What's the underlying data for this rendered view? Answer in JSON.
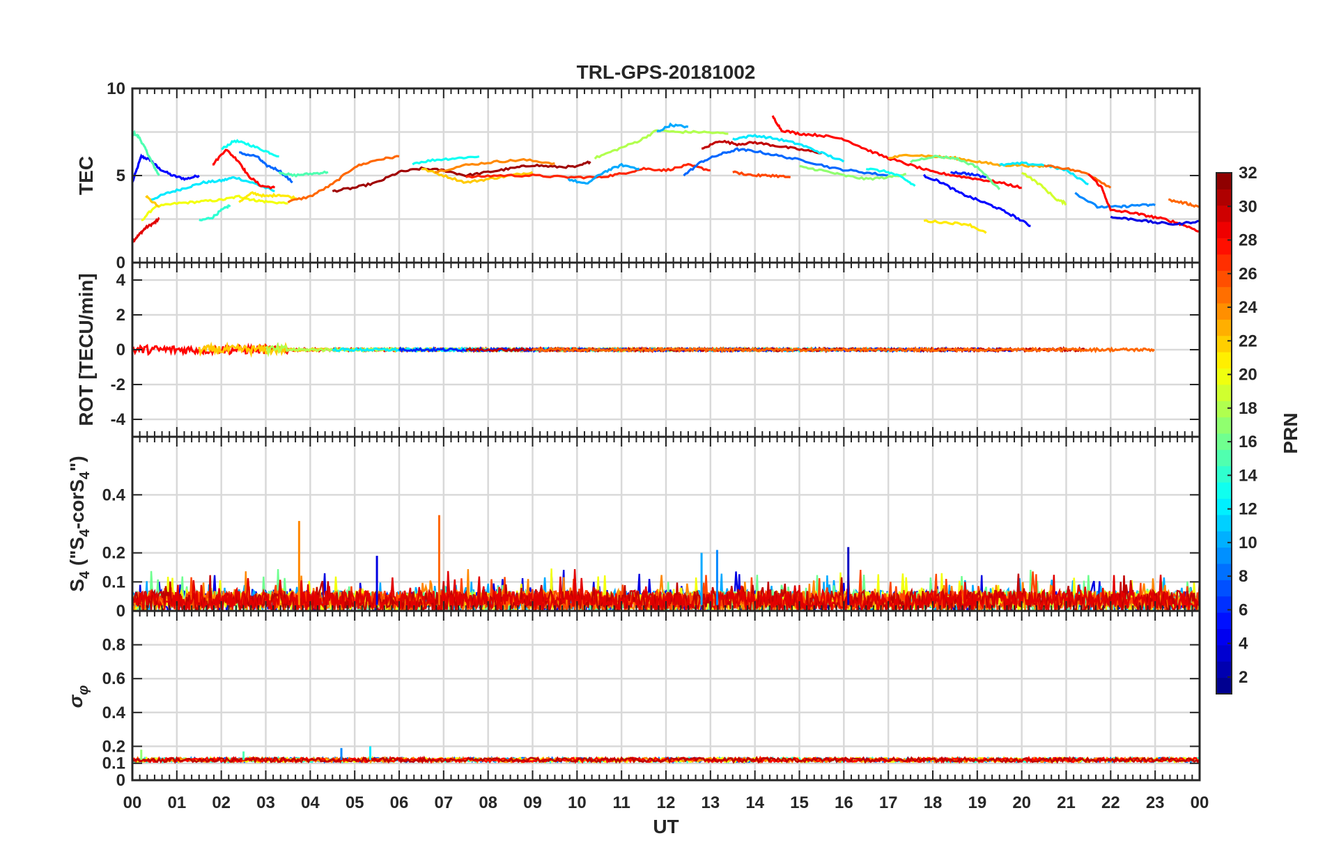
{
  "title": "TRL-GPS-20181002",
  "x_axis": {
    "label": "UT",
    "ticks": [
      "00",
      "01",
      "02",
      "03",
      "04",
      "05",
      "06",
      "07",
      "08",
      "09",
      "10",
      "11",
      "12",
      "13",
      "14",
      "15",
      "16",
      "17",
      "18",
      "19",
      "20",
      "21",
      "22",
      "23",
      "00"
    ]
  },
  "colorbar": {
    "label": "PRN",
    "ticks": [
      "2",
      "4",
      "6",
      "8",
      "10",
      "12",
      "14",
      "16",
      "18",
      "20",
      "22",
      "24",
      "26",
      "28",
      "30",
      "32"
    ],
    "colormap": "jet",
    "range": [
      1,
      32
    ]
  },
  "panels": {
    "tec": {
      "ylabel": "TEC",
      "ticks": [
        "0",
        "5",
        "10"
      ]
    },
    "rot": {
      "ylabel": "ROT [TECU/min]",
      "ticks": [
        "-4",
        "-2",
        "0",
        "2",
        "4"
      ]
    },
    "s4": {
      "ylabel_main": "S",
      "ylabel_sub1": "4",
      "ylabel_mid": " (\"S",
      "ylabel_sub2": "4",
      "ylabel_mid2": "-corS",
      "ylabel_sub3": "4",
      "ylabel_end": "\")",
      "ticks": [
        "0",
        "0.1",
        "0.2",
        "0.4"
      ]
    },
    "sigma": {
      "ylabel_main": "σ",
      "ylabel_sub": "φ",
      "ticks": [
        "0",
        "0.1",
        "0.2",
        "0.4",
        "0.6",
        "0.8"
      ]
    }
  },
  "chart_data": [
    {
      "type": "line",
      "title": "TRL-GPS-20181002",
      "ylabel": "TEC",
      "xlabel": "",
      "xlim": [
        0,
        24
      ],
      "ylim": [
        0,
        10
      ],
      "grid": true,
      "series": [
        {
          "color_prn": 5,
          "x": [
            0,
            0.2,
            0.4,
            0.6,
            0.9,
            1.2,
            1.5
          ],
          "y": [
            4.6,
            6.1,
            5.9,
            5.4,
            5.0,
            4.8,
            5.0
          ]
        },
        {
          "color_prn": 29,
          "x": [
            0,
            0.15,
            0.3,
            0.5,
            0.6
          ],
          "y": [
            1.2,
            1.6,
            2.0,
            2.3,
            2.5
          ]
        },
        {
          "color_prn": 15,
          "x": [
            0,
            0.15,
            0.3,
            0.45,
            0.6
          ],
          "y": [
            7.5,
            7.2,
            6.5,
            5.7,
            5.0
          ]
        },
        {
          "color_prn": 12,
          "x": [
            0.4,
            0.8,
            1.2,
            1.6,
            2.0,
            2.3,
            2.8,
            3.2
          ],
          "y": [
            3.6,
            4.0,
            4.3,
            4.6,
            4.7,
            4.9,
            4.5,
            4.1
          ]
        },
        {
          "color_prn": 20,
          "x": [
            0.2,
            0.5,
            1.0,
            1.5,
            2.0,
            2.4,
            2.7,
            3.0,
            3.5
          ],
          "y": [
            2.4,
            3.2,
            3.4,
            3.5,
            3.6,
            3.8,
            3.6,
            3.5,
            3.4
          ]
        },
        {
          "color_prn": 22,
          "x": [
            0.3,
            0.6
          ],
          "y": [
            3.8,
            3.2
          ]
        },
        {
          "color_prn": 14,
          "x": [
            1.5,
            1.8,
            2.0,
            2.2
          ],
          "y": [
            2.4,
            2.6,
            3.0,
            3.3
          ]
        },
        {
          "color_prn": 13,
          "x": [
            2.0,
            2.3,
            2.6,
            3.0,
            3.3
          ],
          "y": [
            6.5,
            7.0,
            6.8,
            6.4,
            6.1
          ]
        },
        {
          "color_prn": 28,
          "x": [
            1.8,
            2.1,
            2.4,
            2.6,
            2.9,
            3.2
          ],
          "y": [
            5.6,
            6.5,
            5.8,
            5.0,
            4.4,
            4.3
          ]
        },
        {
          "color_prn": 8,
          "x": [
            2.4,
            2.8,
            3.0,
            3.3,
            3.6
          ],
          "y": [
            6.3,
            6.1,
            5.6,
            5.3,
            4.6
          ]
        },
        {
          "color_prn": 21,
          "x": [
            2.4,
            2.7,
            3.0,
            3.3,
            3.7
          ],
          "y": [
            3.5,
            4.0,
            3.8,
            3.9,
            3.7
          ]
        },
        {
          "color_prn": 15,
          "x": [
            3.3,
            3.6,
            4.0,
            4.4
          ],
          "y": [
            5.2,
            5.0,
            5.1,
            5.2
          ]
        },
        {
          "color_prn": 25,
          "x": [
            3.5,
            4.0,
            4.5,
            5.0,
            5.5,
            6.0
          ],
          "y": [
            3.5,
            3.8,
            4.5,
            5.5,
            5.9,
            6.1
          ]
        },
        {
          "color_prn": 31,
          "x": [
            4.5,
            5.0,
            5.5,
            6.0,
            6.5,
            7.0,
            7.5,
            8.0,
            8.5,
            9.0,
            9.5,
            10.0,
            10.3
          ],
          "y": [
            4.1,
            4.3,
            4.6,
            5.2,
            5.4,
            5.3,
            5.0,
            5.2,
            5.4,
            5.6,
            5.5,
            5.5,
            5.8
          ]
        },
        {
          "color_prn": 13,
          "x": [
            6.3,
            6.8,
            7.3,
            7.8
          ],
          "y": [
            5.7,
            5.9,
            6.0,
            6.1
          ]
        },
        {
          "color_prn": 22,
          "x": [
            6.5,
            7.0,
            7.5,
            8.0,
            8.5,
            9.0
          ],
          "y": [
            5.4,
            5.0,
            4.6,
            4.8,
            5.0,
            5.2
          ]
        },
        {
          "color_prn": 24,
          "x": [
            6.8,
            7.5,
            8.2,
            8.8,
            9.5
          ],
          "y": [
            5.2,
            5.6,
            5.8,
            5.9,
            5.7
          ]
        },
        {
          "color_prn": 27,
          "x": [
            7.5,
            8.2,
            9.0,
            9.8,
            10.5,
            11.0,
            11.5,
            12.0,
            12.5,
            13.0
          ],
          "y": [
            4.9,
            5.0,
            5.0,
            4.9,
            4.9,
            5.1,
            5.4,
            5.3,
            5.6,
            5.3
          ]
        },
        {
          "color_prn": 10,
          "x": [
            9.8,
            10.2,
            10.6,
            11.0,
            11.4
          ],
          "y": [
            4.8,
            4.5,
            5.2,
            5.6,
            5.4
          ]
        },
        {
          "color_prn": 18,
          "x": [
            10.4,
            10.9,
            11.4,
            11.8,
            12.2,
            12.8,
            13.4
          ],
          "y": [
            6.0,
            6.5,
            7.0,
            7.6,
            7.5,
            7.5,
            7.4
          ]
        },
        {
          "color_prn": 10,
          "x": [
            11.8,
            12.1,
            12.5
          ],
          "y": [
            7.5,
            7.9,
            7.8
          ]
        },
        {
          "color_prn": 30,
          "x": [
            12.8,
            13.2,
            13.6,
            14.0,
            14.5,
            15.0,
            15.5
          ],
          "y": [
            6.5,
            7.0,
            6.8,
            6.9,
            6.7,
            6.5,
            6.3
          ]
        },
        {
          "color_prn": 8,
          "x": [
            12.4,
            12.8,
            13.2,
            13.6,
            14.0,
            14.6,
            15.2,
            15.8,
            16.4,
            17.0
          ],
          "y": [
            5.0,
            5.8,
            6.2,
            6.5,
            6.4,
            6.1,
            5.8,
            5.4,
            5.2,
            5.0
          ]
        },
        {
          "color_prn": 12,
          "x": [
            13.5,
            14.0,
            14.5,
            15.0,
            15.5,
            16.0
          ],
          "y": [
            7.1,
            7.3,
            7.1,
            6.8,
            6.3,
            5.8
          ]
        },
        {
          "color_prn": 28,
          "x": [
            14.4,
            14.6,
            15.0,
            15.5,
            16.0,
            16.5,
            17.0,
            17.5,
            18.0,
            18.5,
            19.0,
            19.5,
            20.0
          ],
          "y": [
            8.4,
            7.6,
            7.4,
            7.3,
            7.1,
            6.5,
            6.0,
            5.6,
            5.2,
            5.0,
            4.8,
            4.6,
            4.3
          ]
        },
        {
          "color_prn": 26,
          "x": [
            13.5,
            14.0,
            14.4,
            14.8
          ],
          "y": [
            5.2,
            5.0,
            5.0,
            4.9
          ]
        },
        {
          "color_prn": 17,
          "x": [
            15.0,
            15.5,
            16.0,
            16.5,
            17.0,
            17.4
          ],
          "y": [
            5.5,
            5.3,
            5.0,
            4.8,
            4.9,
            5.1
          ]
        },
        {
          "color_prn": 13,
          "x": [
            16.5,
            17.0,
            17.3,
            17.6
          ],
          "y": [
            5.4,
            5.2,
            4.9,
            4.4
          ]
        },
        {
          "color_prn": 23,
          "x": [
            17.0,
            17.5,
            18.0,
            18.5,
            19.0,
            19.5,
            20.0,
            20.5
          ],
          "y": [
            6.0,
            6.2,
            6.1,
            6.0,
            5.8,
            5.6,
            5.6,
            5.5
          ]
        },
        {
          "color_prn": 16,
          "x": [
            17.5,
            18.0,
            18.5,
            19.0,
            19.5
          ],
          "y": [
            5.8,
            6.1,
            6.0,
            5.5,
            4.2
          ]
        },
        {
          "color_prn": 5,
          "x": [
            17.8,
            18.2,
            18.6,
            19.0,
            19.4,
            19.8,
            20.2
          ],
          "y": [
            5.0,
            4.6,
            4.0,
            3.6,
            3.2,
            2.7,
            2.1
          ]
        },
        {
          "color_prn": 6,
          "x": [
            18.4,
            18.8,
            19.2
          ],
          "y": [
            5.2,
            5.1,
            4.9
          ]
        },
        {
          "color_prn": 21,
          "x": [
            17.8,
            18.3,
            18.8,
            19.2
          ],
          "y": [
            2.4,
            2.3,
            2.2,
            1.7
          ]
        },
        {
          "color_prn": 12,
          "x": [
            19.5,
            20.0,
            20.5,
            21.0,
            21.5
          ],
          "y": [
            5.6,
            5.7,
            5.6,
            5.3,
            4.5
          ]
        },
        {
          "color_prn": 19,
          "x": [
            20.0,
            20.4,
            20.8,
            21.0
          ],
          "y": [
            5.2,
            4.5,
            3.6,
            3.4
          ]
        },
        {
          "color_prn": 25,
          "x": [
            20.5,
            21.0,
            21.5,
            22.0
          ],
          "y": [
            5.6,
            5.4,
            5.1,
            4.3
          ]
        },
        {
          "color_prn": 9,
          "x": [
            21.2,
            21.7,
            22.2,
            22.6,
            23.0
          ],
          "y": [
            4.0,
            3.2,
            3.2,
            3.3,
            3.3
          ]
        },
        {
          "color_prn": 28,
          "x": [
            21.5,
            21.8,
            22.0,
            22.4,
            22.8,
            23.2,
            23.6,
            24.0
          ],
          "y": [
            5.1,
            4.3,
            3.0,
            2.9,
            2.7,
            2.5,
            2.2,
            1.8
          ]
        },
        {
          "color_prn": 4,
          "x": [
            22.0,
            22.5,
            23.0,
            23.5,
            24.0
          ],
          "y": [
            2.6,
            2.5,
            2.3,
            2.2,
            2.4
          ]
        },
        {
          "color_prn": 25,
          "x": [
            23.3,
            23.7,
            24.0
          ],
          "y": [
            3.6,
            3.4,
            3.2
          ]
        }
      ]
    },
    {
      "type": "line",
      "ylabel": "ROT [TECU/min]",
      "xlim": [
        0,
        24
      ],
      "ylim": [
        -5,
        5
      ],
      "grid": true,
      "description_values": "all series fluctuate near 0 with amplitude about ±0.3 TECU/min",
      "series": [
        {
          "color_prn": 28,
          "x_range": [
            0,
            24
          ],
          "amplitude": 0.3,
          "baseline": 0
        }
      ]
    },
    {
      "type": "line",
      "ylabel": "S4 (\"S4-corS4\")",
      "xlim": [
        0,
        24
      ],
      "ylim": [
        0,
        0.6
      ],
      "grid": true,
      "series_notes": "dense noise 0–0.15 with spikes",
      "spikes": [
        {
          "x": 3.75,
          "y": 0.31,
          "color_prn": 24
        },
        {
          "x": 6.9,
          "y": 0.33,
          "color_prn": 25
        },
        {
          "x": 13.15,
          "y": 0.21,
          "color_prn": 9
        },
        {
          "x": 12.8,
          "y": 0.2,
          "color_prn": 10
        },
        {
          "x": 16.1,
          "y": 0.22,
          "color_prn": 3
        },
        {
          "x": 5.5,
          "y": 0.19,
          "color_prn": 4
        }
      ]
    },
    {
      "type": "line",
      "ylabel": "σφ",
      "xlim": [
        0,
        24
      ],
      "ylim": [
        0,
        1
      ],
      "grid": true,
      "baseline": 0.12,
      "spikes": [
        {
          "x": 5.35,
          "y": 0.2,
          "color_prn": 12
        },
        {
          "x": 4.7,
          "y": 0.19,
          "color_prn": 9
        },
        {
          "x": 2.5,
          "y": 0.17,
          "color_prn": 15
        },
        {
          "x": 0.2,
          "y": 0.18,
          "color_prn": 17
        }
      ]
    }
  ]
}
